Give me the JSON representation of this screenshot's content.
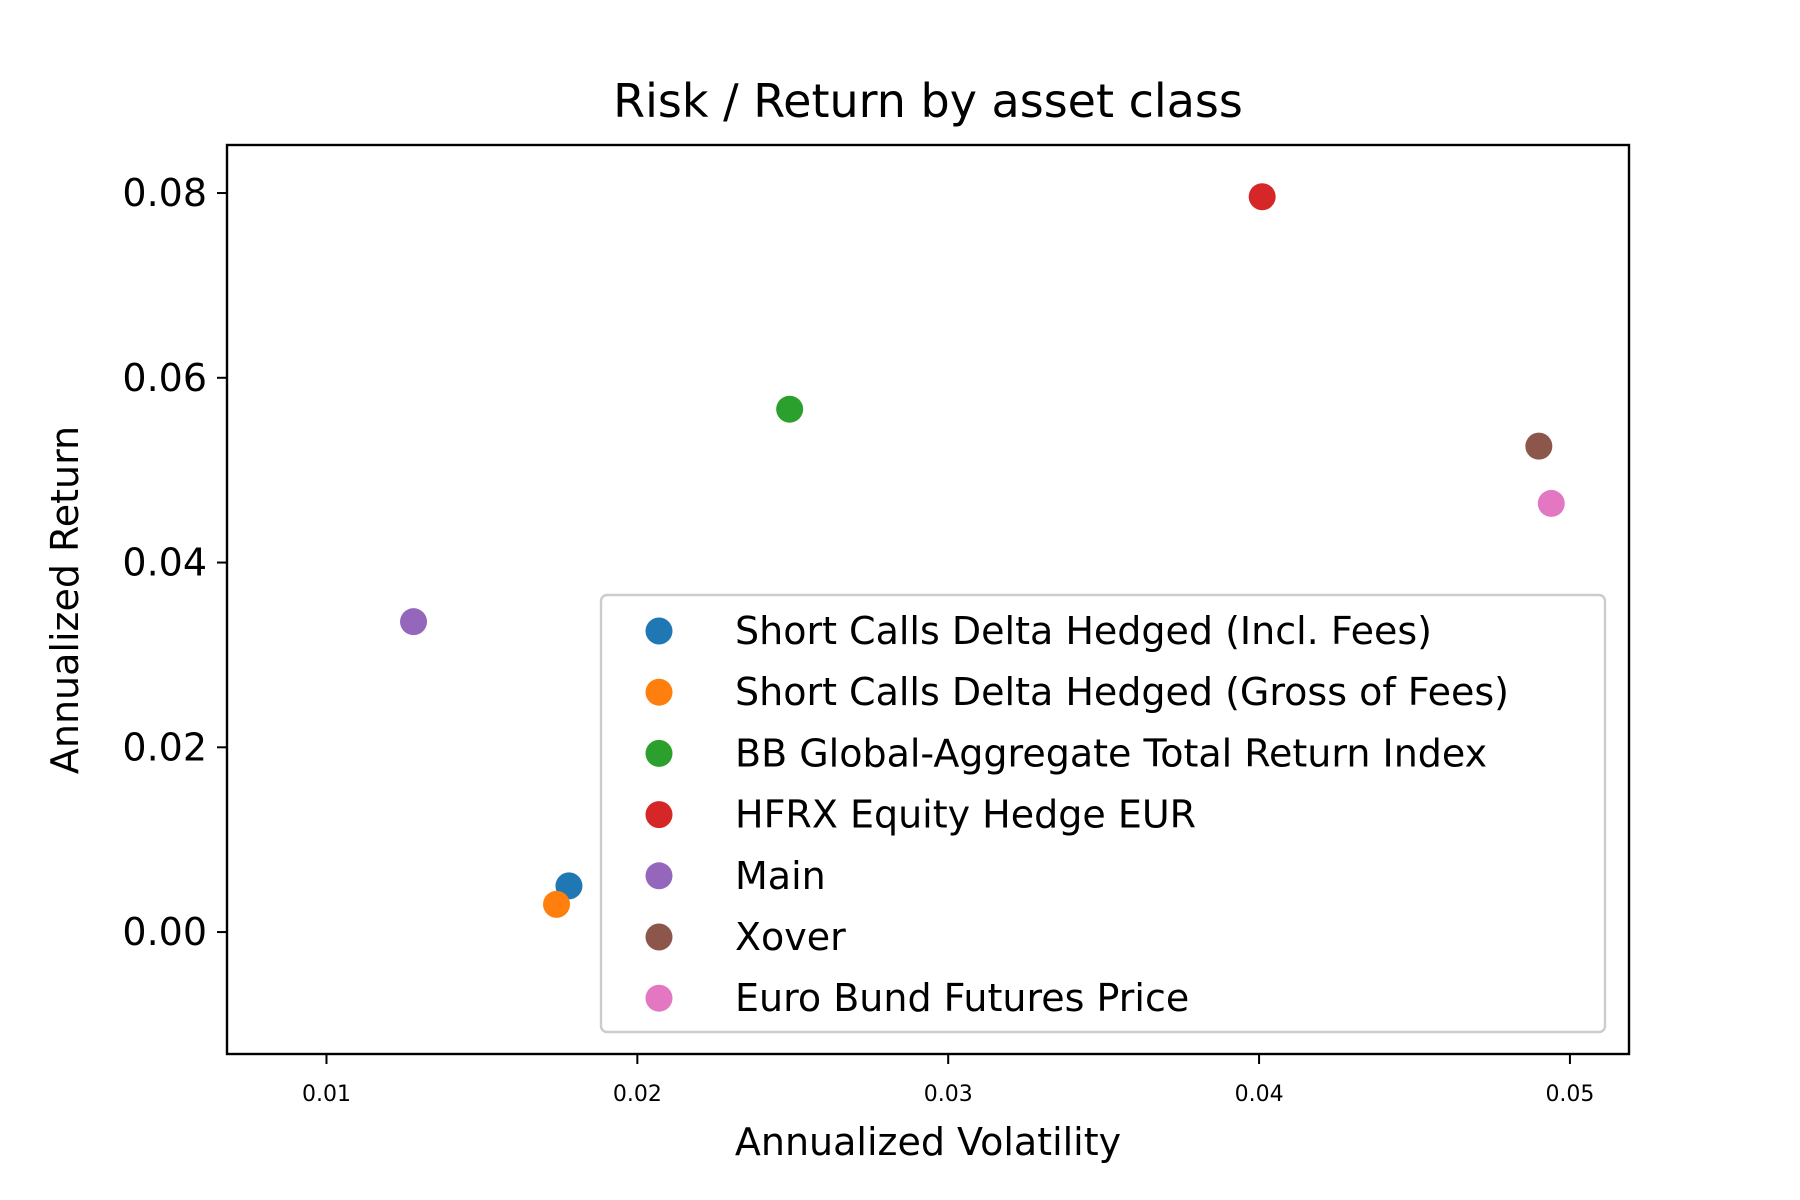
{
  "chart_data": {
    "type": "scatter",
    "title": "Risk / Return by asset class",
    "xlabel": "Annualized Volatility",
    "ylabel": "Annualized Return",
    "xlim": [
      0.0068,
      0.0519
    ],
    "ylim": [
      -0.0132,
      0.0852
    ],
    "xticks": [
      0.01,
      0.02,
      0.03,
      0.04,
      0.05
    ],
    "xtick_labels": [
      "0.01",
      "0.02",
      "0.03",
      "0.04",
      "0.05"
    ],
    "yticks": [
      0.0,
      0.02,
      0.04,
      0.06,
      0.08
    ],
    "ytick_labels": [
      "0.00",
      "0.02",
      "0.04",
      "0.06",
      "0.08"
    ],
    "grid": false,
    "legend_position": "lower-right",
    "series": [
      {
        "name": "Short Calls Delta Hedged (Incl. Fees)",
        "color": "#1f77b4",
        "x": [
          0.0178
        ],
        "y": [
          0.005
        ]
      },
      {
        "name": "Short Calls Delta Hedged (Gross of Fees)",
        "color": "#ff7f0e",
        "x": [
          0.0174
        ],
        "y": [
          0.003
        ]
      },
      {
        "name": "BB Global-Aggregate Total Return Index",
        "color": "#2ca02c",
        "x": [
          0.0249
        ],
        "y": [
          0.0566
        ]
      },
      {
        "name": "HFRX Equity Hedge EUR",
        "color": "#d62728",
        "x": [
          0.0401
        ],
        "y": [
          0.0796
        ]
      },
      {
        "name": "Main",
        "color": "#9467bd",
        "x": [
          0.0128
        ],
        "y": [
          0.0336
        ]
      },
      {
        "name": "Xover",
        "color": "#8c564b",
        "x": [
          0.049
        ],
        "y": [
          0.0526
        ]
      },
      {
        "name": "Euro Bund Futures Price",
        "color": "#e377c2",
        "x": [
          0.0494
        ],
        "y": [
          0.0464
        ]
      }
    ]
  }
}
